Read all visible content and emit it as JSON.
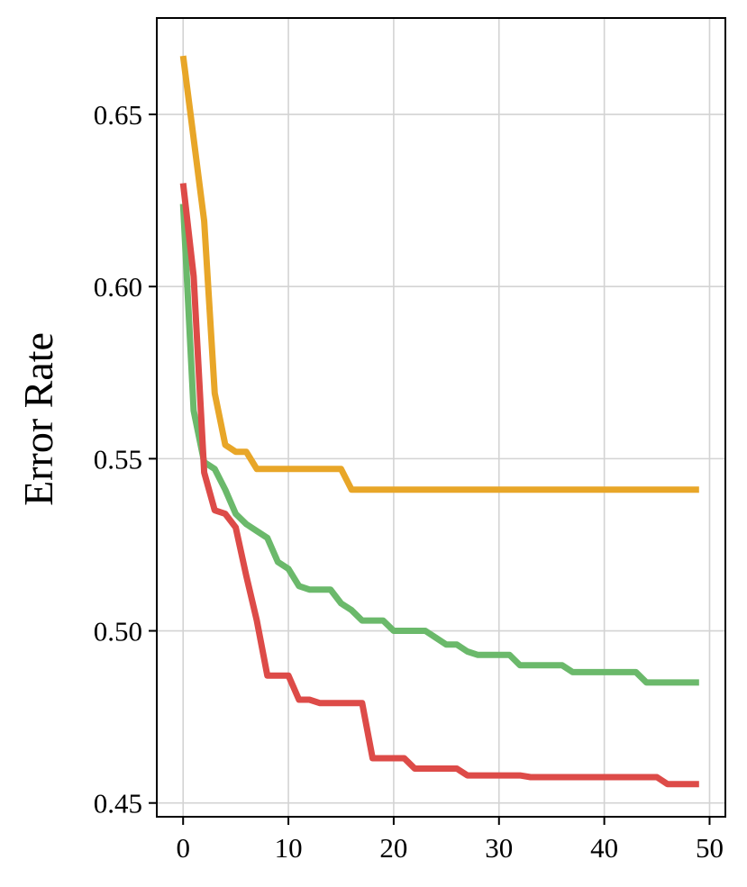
{
  "chart_data": {
    "type": "line",
    "title": "",
    "xlabel": "",
    "ylabel": "Error Rate",
    "xlim": [
      -2.5,
      51.5
    ],
    "ylim": [
      0.446,
      0.678
    ],
    "xticks": [
      0,
      10,
      20,
      30,
      40,
      50
    ],
    "xtick_labels": [
      "0",
      "10",
      "20",
      "30",
      "40",
      "50"
    ],
    "yticks": [
      0.45,
      0.5,
      0.55,
      0.6,
      0.65
    ],
    "ytick_labels": [
      "0.45",
      "0.50",
      "0.55",
      "0.60",
      "0.65"
    ],
    "grid": true,
    "legend": "none",
    "series": [
      {
        "color": "#e8a628",
        "x": [
          0,
          1,
          2,
          3,
          4,
          5,
          6,
          7,
          8,
          9,
          10,
          11,
          12,
          13,
          14,
          15,
          16,
          17,
          18,
          19,
          20,
          21,
          22,
          23,
          24,
          25,
          26,
          27,
          28,
          29,
          30,
          31,
          32,
          33,
          34,
          35,
          36,
          37,
          38,
          39,
          40,
          41,
          42,
          43,
          44,
          45,
          46,
          47,
          48,
          49
        ],
        "y": [
          0.667,
          0.643,
          0.619,
          0.569,
          0.554,
          0.552,
          0.552,
          0.547,
          0.547,
          0.547,
          0.547,
          0.547,
          0.547,
          0.547,
          0.547,
          0.547,
          0.541,
          0.541,
          0.541,
          0.541,
          0.541,
          0.541,
          0.541,
          0.541,
          0.541,
          0.541,
          0.541,
          0.541,
          0.541,
          0.541,
          0.541,
          0.541,
          0.541,
          0.541,
          0.541,
          0.541,
          0.541,
          0.541,
          0.541,
          0.541,
          0.541,
          0.541,
          0.541,
          0.541,
          0.541,
          0.541,
          0.541,
          0.541,
          0.541,
          0.541
        ]
      },
      {
        "color": "#6bb96b",
        "x": [
          0,
          1,
          2,
          3,
          4,
          5,
          6,
          7,
          8,
          9,
          10,
          11,
          12,
          13,
          14,
          15,
          16,
          17,
          18,
          19,
          20,
          21,
          22,
          23,
          24,
          25,
          26,
          27,
          28,
          29,
          30,
          31,
          32,
          33,
          34,
          35,
          36,
          37,
          38,
          39,
          40,
          41,
          42,
          43,
          44,
          45,
          46,
          47,
          48,
          49
        ],
        "y": [
          0.624,
          0.564,
          0.549,
          0.547,
          0.541,
          0.534,
          0.531,
          0.529,
          0.527,
          0.52,
          0.518,
          0.513,
          0.512,
          0.512,
          0.512,
          0.508,
          0.506,
          0.503,
          0.503,
          0.503,
          0.5,
          0.5,
          0.5,
          0.5,
          0.498,
          0.496,
          0.496,
          0.494,
          0.493,
          0.493,
          0.493,
          0.493,
          0.49,
          0.49,
          0.49,
          0.49,
          0.49,
          0.488,
          0.488,
          0.488,
          0.488,
          0.488,
          0.488,
          0.488,
          0.485,
          0.485,
          0.485,
          0.485,
          0.485,
          0.485
        ]
      },
      {
        "color": "#dd4b48",
        "x": [
          0,
          1,
          2,
          3,
          4,
          5,
          6,
          7,
          8,
          9,
          10,
          11,
          12,
          13,
          14,
          15,
          16,
          17,
          18,
          19,
          20,
          21,
          22,
          23,
          24,
          25,
          26,
          27,
          28,
          29,
          30,
          31,
          32,
          33,
          34,
          35,
          36,
          37,
          38,
          39,
          40,
          41,
          42,
          43,
          44,
          45,
          46,
          47,
          48,
          49
        ],
        "y": [
          0.63,
          0.603,
          0.546,
          0.535,
          0.534,
          0.53,
          0.516,
          0.503,
          0.487,
          0.487,
          0.487,
          0.48,
          0.48,
          0.479,
          0.479,
          0.479,
          0.479,
          0.479,
          0.463,
          0.463,
          0.463,
          0.463,
          0.46,
          0.46,
          0.46,
          0.46,
          0.46,
          0.458,
          0.458,
          0.458,
          0.458,
          0.458,
          0.458,
          0.4575,
          0.4575,
          0.4575,
          0.4575,
          0.4575,
          0.4575,
          0.4575,
          0.4575,
          0.4575,
          0.4575,
          0.4575,
          0.4575,
          0.4575,
          0.4555,
          0.4555,
          0.4555,
          0.4555
        ]
      }
    ]
  }
}
